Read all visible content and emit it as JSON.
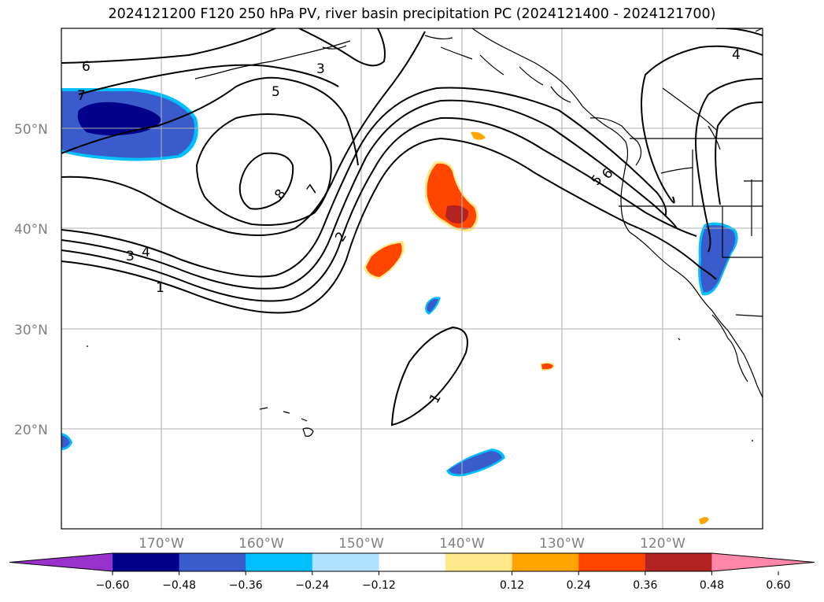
{
  "title": "2024121200 F120 250 hPa PV, river basin precipitation PC (2024121400 - 2024121700)",
  "map": {
    "lat_labels": [
      "50°N",
      "40°N",
      "30°N",
      "20°N"
    ],
    "lon_labels": [
      "170°W",
      "160°W",
      "150°W",
      "140°W",
      "130°W",
      "120°W"
    ],
    "lat_range": [
      10,
      60
    ],
    "lon_range": [
      -180,
      -110
    ],
    "gridlines": true
  },
  "contours": {
    "field": "250 hPa PV",
    "color": "#000000",
    "labels": [
      "6",
      "7",
      "3",
      "5",
      "8",
      "7",
      "2",
      "3",
      "4",
      "1",
      "4",
      "5",
      "6",
      "1"
    ]
  },
  "colorbar": {
    "ticks": [
      "−0.60",
      "−0.48",
      "−0.36",
      "−0.24",
      "−0.12",
      "0.12",
      "0.24",
      "0.36",
      "0.48",
      "0.60"
    ],
    "colors": [
      "#9932cc",
      "#00008b",
      "#3a5bcc",
      "#00bfff",
      "#b0e2ff",
      "#ffffff",
      "#ffe98a",
      "#ffa500",
      "#ff4500",
      "#b22222",
      "#ff88aa"
    ],
    "extend": "both"
  },
  "shading_colors": {
    "dark_blue": "#00008b",
    "mid_blue": "#3a5bcc",
    "cyan": "#00bfff",
    "light_yellow": "#ffe98a",
    "orange": "#ffa500",
    "red_orange": "#ff4500",
    "dark_red": "#b22222"
  }
}
